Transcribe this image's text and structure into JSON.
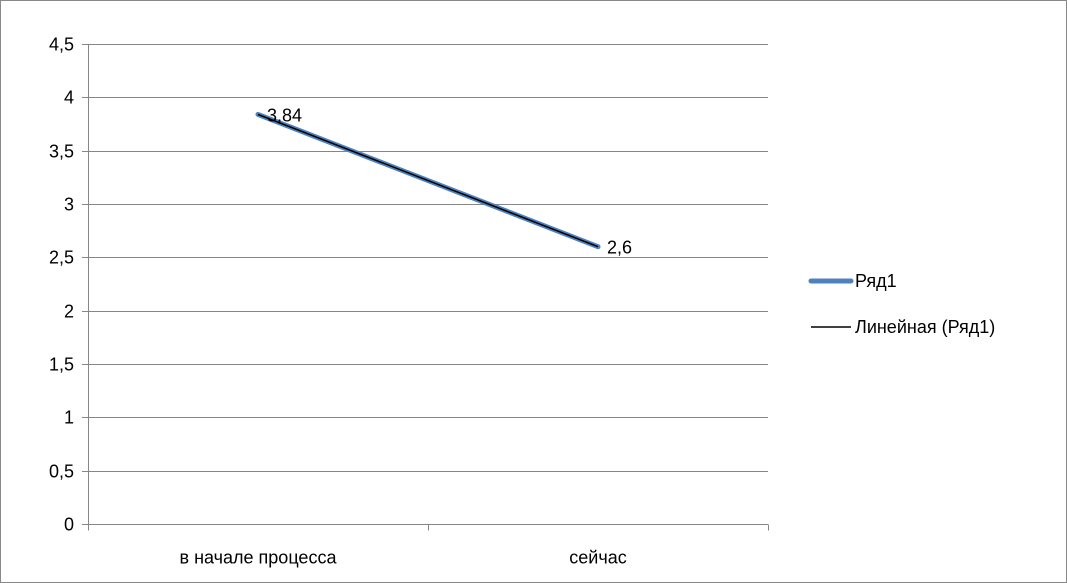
{
  "chart_data": {
    "type": "line",
    "categories": [
      "в начале  процесса",
      "сейчас"
    ],
    "series": [
      {
        "name": "Ряд1",
        "values": [
          3.84,
          2.6
        ],
        "data_labels": [
          "3,84",
          "2,6"
        ],
        "color": "#4F81BD"
      }
    ],
    "trendline": {
      "name": "Линейная (Ряд1)",
      "type": "linear",
      "values": [
        3.84,
        2.6
      ],
      "color": "#000000"
    },
    "y_ticks": [
      0,
      0.5,
      1,
      1.5,
      2,
      2.5,
      3,
      3.5,
      4,
      4.5
    ],
    "y_tick_labels": [
      "0",
      "0,5",
      "1",
      "1,5",
      "2",
      "2,5",
      "3",
      "3,5",
      "4",
      "4,5"
    ],
    "ylim": [
      0,
      4.5
    ],
    "grid": true,
    "legend_position": "right",
    "title": "",
    "xlabel": "",
    "ylabel": ""
  }
}
